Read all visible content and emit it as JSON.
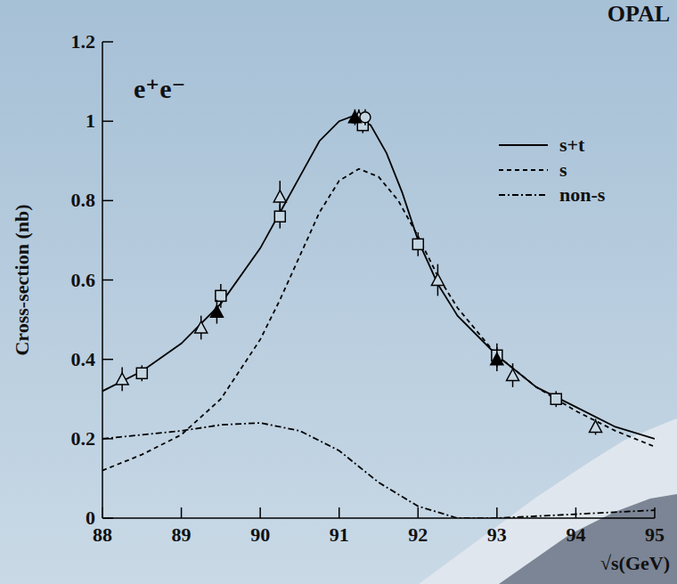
{
  "chart_data": {
    "type": "line",
    "title": "OPAL",
    "annotation": "e⁺e⁻",
    "x_label": "√s(GeV)",
    "y_label": "Cross-section (nb)",
    "xlim": [
      88,
      95
    ],
    "ylim": [
      0,
      1.2
    ],
    "xticks": [
      88,
      89,
      90,
      91,
      92,
      93,
      94,
      95
    ],
    "yticks": [
      0,
      0.2,
      0.4,
      0.6,
      0.8,
      1,
      1.2
    ],
    "legend": "top-right",
    "grid": false,
    "series": [
      {
        "name": "s+t",
        "color": "#000000",
        "line_style": "solid",
        "x": [
          88,
          88.5,
          89,
          89.5,
          90,
          90.25,
          90.5,
          90.75,
          91,
          91.2,
          91.4,
          91.6,
          91.8,
          92,
          92.25,
          92.5,
          93,
          93.5,
          94,
          94.5,
          95
        ],
        "values": [
          0.32,
          0.37,
          0.44,
          0.54,
          0.68,
          0.77,
          0.86,
          0.95,
          1.0,
          1.015,
          0.99,
          0.92,
          0.82,
          0.7,
          0.59,
          0.51,
          0.41,
          0.33,
          0.28,
          0.23,
          0.2
        ]
      },
      {
        "name": "s",
        "color": "#000000",
        "line_style": "dashed",
        "x": [
          88,
          88.5,
          89,
          89.5,
          90,
          90.25,
          90.5,
          90.75,
          91,
          91.25,
          91.5,
          91.75,
          92,
          92.25,
          92.5,
          93,
          93.5,
          94,
          94.5,
          95
        ],
        "values": [
          0.12,
          0.16,
          0.21,
          0.3,
          0.45,
          0.55,
          0.66,
          0.77,
          0.85,
          0.88,
          0.86,
          0.8,
          0.71,
          0.61,
          0.53,
          0.41,
          0.33,
          0.27,
          0.22,
          0.18
        ]
      },
      {
        "name": "non-s",
        "color": "#000000",
        "line_style": "dashdot",
        "x": [
          88,
          88.5,
          89,
          89.5,
          90,
          90.5,
          91,
          91.5,
          92,
          92.5,
          93,
          94,
          95
        ],
        "values": [
          0.2,
          0.21,
          0.22,
          0.235,
          0.24,
          0.22,
          0.17,
          0.09,
          0.03,
          0.0,
          0.0,
          0.01,
          0.02
        ]
      },
      {
        "type": "scatter",
        "marker": "triangle",
        "color": "#000000",
        "x": [
          88.25,
          89.25,
          90.25,
          91.25,
          92.25,
          93.2,
          94.25
        ],
        "values": [
          0.35,
          0.48,
          0.81,
          1.01,
          0.6,
          0.36,
          0.23
        ],
        "errors": [
          0.03,
          0.03,
          0.04,
          0.02,
          0.04,
          0.03,
          0.02
        ]
      },
      {
        "type": "scatter",
        "marker": "square",
        "color": "#000000",
        "x": [
          88.5,
          89.5,
          90.25,
          91.3,
          92,
          93,
          93.75
        ],
        "values": [
          0.365,
          0.56,
          0.76,
          0.99,
          0.69,
          0.41,
          0.3
        ],
        "errors": [
          0.02,
          0.03,
          0.03,
          0.02,
          0.03,
          0.03,
          0.02
        ]
      },
      {
        "type": "scatter",
        "marker": "triangle-filled",
        "color": "#000000",
        "x": [
          89.45,
          91.2,
          93.0
        ],
        "values": [
          0.52,
          1.01,
          0.4
        ],
        "errors": [
          0.03,
          0.02,
          0.03
        ]
      },
      {
        "type": "scatter",
        "marker": "circle",
        "color": "#000000",
        "x": [
          91.33
        ],
        "values": [
          1.01
        ],
        "errors": [
          0.02
        ]
      }
    ]
  }
}
